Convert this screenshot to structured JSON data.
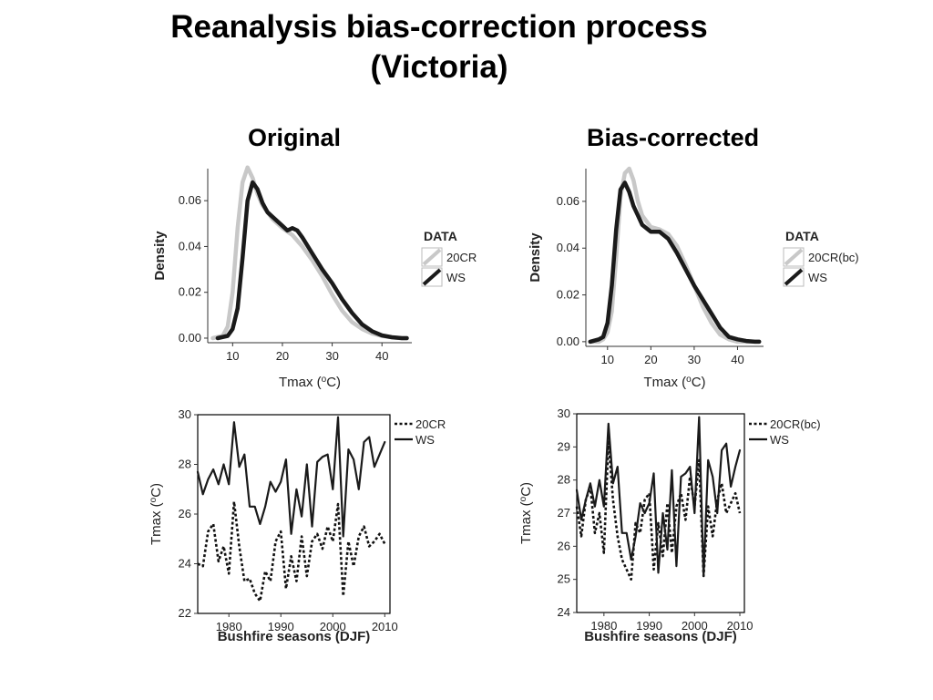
{
  "slide": {
    "title_line1": "Reanalysis bias-correction process",
    "title_line2": "(Victoria)"
  },
  "panels": {
    "left_title": "Original",
    "right_title": "Bias-corrected"
  },
  "colors": {
    "reanalysis_density": "#c8c8c8",
    "ws": "#1a1a1a",
    "dotted": "#111111"
  },
  "chart_data": [
    {
      "id": "density-original",
      "type": "line",
      "xlabel": "Tmax (oC)",
      "ylabel": "Density",
      "xlim": [
        5,
        46
      ],
      "ylim": [
        -0.002,
        0.074
      ],
      "xticks": [
        10,
        20,
        30,
        40
      ],
      "yticks": [
        0.0,
        0.02,
        0.04,
        0.06
      ],
      "ytick_labels": [
        "0.00",
        "0.02",
        "0.04",
        "0.06"
      ],
      "legend_title": "DATA",
      "series": [
        {
          "name": "20CR",
          "style": "light",
          "x": [
            6,
            8,
            9,
            10,
            11,
            12,
            13,
            14,
            15,
            16,
            17,
            18,
            20,
            22,
            24,
            26,
            28,
            30,
            32,
            34,
            36,
            38,
            40,
            42,
            44,
            45
          ],
          "y": [
            0,
            0.001,
            0.005,
            0.02,
            0.048,
            0.068,
            0.0745,
            0.07,
            0.063,
            0.058,
            0.055,
            0.052,
            0.048,
            0.045,
            0.04,
            0.034,
            0.027,
            0.019,
            0.012,
            0.007,
            0.004,
            0.002,
            0.001,
            0.0003,
            0,
            0
          ]
        },
        {
          "name": "WS",
          "style": "dark",
          "x": [
            7,
            9,
            10,
            11,
            12,
            13,
            14,
            15,
            16,
            17,
            18,
            20,
            21,
            22,
            23,
            24,
            26,
            28,
            30,
            32,
            34,
            36,
            38,
            40,
            42,
            44,
            45
          ],
          "y": [
            0,
            0.001,
            0.004,
            0.013,
            0.035,
            0.06,
            0.068,
            0.065,
            0.059,
            0.055,
            0.053,
            0.049,
            0.047,
            0.048,
            0.047,
            0.044,
            0.037,
            0.03,
            0.024,
            0.017,
            0.011,
            0.006,
            0.003,
            0.0012,
            0.0004,
            0,
            0
          ]
        }
      ]
    },
    {
      "id": "density-bias-corrected",
      "type": "line",
      "xlabel": "Tmax (oC)",
      "ylabel": "Density",
      "xlim": [
        5,
        46
      ],
      "ylim": [
        -0.002,
        0.074
      ],
      "xticks": [
        10,
        20,
        30,
        40
      ],
      "yticks": [
        0.0,
        0.02,
        0.04,
        0.06
      ],
      "ytick_labels": [
        "0.00",
        "0.02",
        "0.04",
        "0.06"
      ],
      "legend_title": "DATA",
      "series": [
        {
          "name": "20CR(bc)",
          "style": "light",
          "x": [
            6,
            8,
            9,
            10,
            11,
            12,
            13,
            14,
            15,
            16,
            17,
            18,
            20,
            22,
            24,
            26,
            28,
            30,
            32,
            34,
            36,
            38,
            40,
            42,
            44,
            45
          ],
          "y": [
            0,
            0,
            0.001,
            0.004,
            0.013,
            0.036,
            0.062,
            0.072,
            0.074,
            0.069,
            0.06,
            0.054,
            0.049,
            0.048,
            0.046,
            0.041,
            0.033,
            0.024,
            0.015,
            0.008,
            0.003,
            0.001,
            0,
            0,
            0,
            0
          ]
        },
        {
          "name": "WS",
          "style": "dark",
          "x": [
            6,
            8,
            9,
            10,
            11,
            12,
            13,
            14,
            15,
            16,
            17,
            18,
            20,
            22,
            24,
            26,
            28,
            30,
            32,
            34,
            36,
            38,
            40,
            42,
            44,
            45
          ],
          "y": [
            0,
            0.001,
            0.002,
            0.008,
            0.024,
            0.048,
            0.065,
            0.068,
            0.064,
            0.058,
            0.054,
            0.05,
            0.047,
            0.047,
            0.044,
            0.038,
            0.031,
            0.024,
            0.018,
            0.012,
            0.006,
            0.002,
            0.001,
            0.0003,
            0,
            0
          ]
        }
      ]
    },
    {
      "id": "timeseries-original",
      "type": "line",
      "xlabel": "Bushfire seasons (DJF)",
      "ylabel": "Tmax (oC)",
      "xlim": [
        1974,
        2011
      ],
      "ylim": [
        22,
        30
      ],
      "xticks": [
        1980,
        1990,
        2000,
        2010
      ],
      "yticks": [
        22,
        24,
        26,
        28,
        30
      ],
      "ytick_labels": [
        "22",
        "24",
        "26",
        "28",
        "30"
      ],
      "x": [
        1974,
        1975,
        1976,
        1977,
        1978,
        1979,
        1980,
        1981,
        1982,
        1983,
        1984,
        1985,
        1986,
        1987,
        1988,
        1989,
        1990,
        1991,
        1992,
        1993,
        1994,
        1995,
        1996,
        1997,
        1998,
        1999,
        2000,
        2001,
        2002,
        2003,
        2004,
        2005,
        2006,
        2007,
        2008,
        2009,
        2010
      ],
      "series": [
        {
          "name": "20CR",
          "style": "dotted",
          "values": [
            24.0,
            23.9,
            25.3,
            25.6,
            24.1,
            24.7,
            23.6,
            26.5,
            24.7,
            23.3,
            23.4,
            22.8,
            22.5,
            23.7,
            23.3,
            24.9,
            25.3,
            23.0,
            24.3,
            23.3,
            25.1,
            23.5,
            24.9,
            25.2,
            24.6,
            25.5,
            24.9,
            26.4,
            22.7,
            24.9,
            23.9,
            25.1,
            25.5,
            24.7,
            24.9,
            25.2,
            24.8
          ]
        },
        {
          "name": "WS",
          "style": "solid",
          "values": [
            27.7,
            26.8,
            27.4,
            27.8,
            27.2,
            28.0,
            27.2,
            29.7,
            27.9,
            28.4,
            26.3,
            26.3,
            25.6,
            26.3,
            27.3,
            26.9,
            27.3,
            28.2,
            25.2,
            27.0,
            25.9,
            28.0,
            25.5,
            28.1,
            28.3,
            28.4,
            27.0,
            29.9,
            25.1,
            28.6,
            28.2,
            27.0,
            28.9,
            29.1,
            27.9,
            28.4,
            28.9
          ]
        }
      ]
    },
    {
      "id": "timeseries-bias-corrected",
      "type": "line",
      "xlabel": "Bushfire seasons (DJF)",
      "ylabel": "Tmax (oC)",
      "xlim": [
        1974,
        2011
      ],
      "ylim": [
        24,
        30
      ],
      "xticks": [
        1980,
        1990,
        2000,
        2010
      ],
      "yticks": [
        24,
        25,
        26,
        27,
        28,
        29,
        30
      ],
      "ytick_labels": [
        "24",
        "25",
        "26",
        "27",
        "28",
        "29",
        "30"
      ],
      "x": [
        1974,
        1975,
        1976,
        1977,
        1978,
        1979,
        1980,
        1981,
        1982,
        1983,
        1984,
        1985,
        1986,
        1987,
        1988,
        1989,
        1990,
        1991,
        1992,
        1993,
        1994,
        1995,
        1996,
        1997,
        1998,
        1999,
        2000,
        2001,
        2002,
        2003,
        2004,
        2005,
        2006,
        2007,
        2008,
        2009,
        2010
      ],
      "series": [
        {
          "name": "20CR(bc)",
          "style": "dotted",
          "values": [
            27.2,
            26.3,
            27.4,
            27.8,
            26.4,
            27.0,
            25.8,
            29.2,
            27.4,
            26.3,
            25.6,
            25.3,
            25.0,
            26.7,
            26.4,
            27.4,
            27.6,
            25.3,
            26.7,
            25.7,
            27.3,
            25.8,
            27.2,
            27.6,
            26.8,
            28.1,
            27.2,
            28.6,
            25.1,
            27.2,
            26.3,
            27.4,
            27.9,
            27.0,
            27.3,
            27.6,
            27.0
          ]
        },
        {
          "name": "WS",
          "style": "solid",
          "values": [
            27.7,
            26.8,
            27.4,
            27.9,
            27.2,
            28.0,
            27.2,
            29.7,
            27.9,
            28.4,
            26.4,
            26.4,
            25.6,
            26.3,
            27.3,
            27.0,
            27.3,
            28.2,
            25.2,
            27.0,
            25.9,
            28.3,
            25.4,
            28.1,
            28.2,
            28.4,
            27.0,
            29.9,
            25.1,
            28.6,
            28.1,
            27.0,
            28.9,
            29.1,
            27.8,
            28.4,
            28.9
          ]
        }
      ]
    }
  ]
}
